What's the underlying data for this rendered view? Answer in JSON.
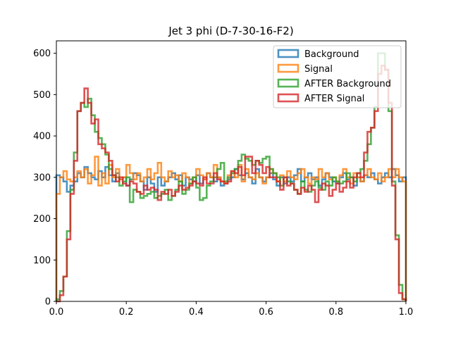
{
  "chart_data": {
    "type": "histogram-step",
    "title": "Jet 3 phi (D-7-30-16-F2)",
    "xlabel": "",
    "ylabel": "",
    "xlim": [
      0,
      1
    ],
    "ylim": [
      0,
      630
    ],
    "x_ticks": [
      0.0,
      0.2,
      0.4,
      0.6,
      0.8,
      1.0
    ],
    "x_tick_labels": [
      "0.0",
      "0.2",
      "0.4",
      "0.6",
      "0.8",
      "1.0"
    ],
    "y_ticks": [
      0,
      100,
      200,
      300,
      400,
      500,
      600
    ],
    "y_tick_labels": [
      "0",
      "100",
      "200",
      "300",
      "400",
      "500",
      "600"
    ],
    "bins": 100,
    "bin_range": [
      0,
      1
    ],
    "grid": false,
    "legend_position": "top-right",
    "series": [
      {
        "name": "Background",
        "color": "#1f77b4",
        "values": [
          305,
          300,
          290,
          265,
          280,
          290,
          310,
          300,
          325,
          310,
          300,
          295,
          315,
          300,
          325,
          305,
          290,
          310,
          295,
          300,
          280,
          295,
          310,
          305,
          290,
          270,
          300,
          285,
          265,
          300,
          280,
          290,
          300,
          310,
          295,
          305,
          280,
          300,
          295,
          290,
          305,
          285,
          295,
          310,
          300,
          290,
          300,
          280,
          285,
          295,
          300,
          320,
          305,
          295,
          310,
          300,
          285,
          320,
          300,
          290,
          300,
          310,
          295,
          280,
          300,
          285,
          300,
          290,
          305,
          320,
          290,
          300,
          310,
          295,
          300,
          280,
          295,
          310,
          300,
          290,
          285,
          300,
          310,
          295,
          300,
          280,
          300,
          290,
          305,
          300,
          310,
          295,
          285,
          300,
          310,
          300,
          320,
          305,
          290,
          300
        ]
      },
      {
        "name": "Signal",
        "color": "#ff7f0e",
        "values": [
          260,
          300,
          315,
          295,
          290,
          300,
          315,
          300,
          320,
          285,
          305,
          350,
          280,
          310,
          285,
          330,
          300,
          320,
          295,
          300,
          330,
          310,
          295,
          310,
          290,
          300,
          320,
          295,
          310,
          335,
          300,
          290,
          315,
          300,
          305,
          290,
          310,
          300,
          285,
          300,
          320,
          305,
          295,
          310,
          300,
          330,
          300,
          290,
          285,
          305,
          315,
          300,
          330,
          290,
          320,
          300,
          295,
          310,
          300,
          285,
          300,
          320,
          310,
          290,
          305,
          290,
          315,
          300,
          295,
          310,
          320,
          300,
          285,
          300,
          295,
          320,
          300,
          310,
          295,
          300,
          290,
          305,
          320,
          300,
          285,
          310,
          300,
          290,
          305,
          320,
          300,
          295,
          310,
          290,
          300,
          320,
          300,
          320,
          300,
          290
        ]
      },
      {
        "name": "AFTER Background",
        "color": "#2ca02c",
        "values": [
          5,
          25,
          60,
          170,
          270,
          360,
          460,
          480,
          470,
          490,
          450,
          410,
          395,
          380,
          355,
          320,
          305,
          300,
          280,
          290,
          300,
          240,
          270,
          265,
          250,
          255,
          260,
          265,
          250,
          255,
          260,
          270,
          245,
          255,
          270,
          290,
          260,
          270,
          285,
          300,
          275,
          245,
          250,
          280,
          290,
          300,
          320,
          335,
          290,
          300,
          310,
          320,
          340,
          355,
          345,
          340,
          330,
          340,
          335,
          345,
          350,
          320,
          310,
          300,
          280,
          300,
          290,
          285,
          270,
          260,
          290,
          270,
          265,
          280,
          290,
          275,
          270,
          290,
          280,
          300,
          290,
          285,
          290,
          310,
          300,
          290,
          310,
          320,
          340,
          380,
          420,
          470,
          600,
          600,
          560,
          460,
          290,
          160,
          40,
          5
        ]
      },
      {
        "name": "AFTER Signal",
        "color": "#d62728",
        "values": [
          0,
          15,
          60,
          150,
          260,
          340,
          460,
          480,
          515,
          480,
          430,
          440,
          380,
          370,
          360,
          340,
          305,
          290,
          300,
          285,
          280,
          290,
          285,
          265,
          260,
          280,
          270,
          275,
          270,
          245,
          265,
          260,
          270,
          255,
          265,
          280,
          270,
          275,
          280,
          290,
          285,
          280,
          300,
          285,
          285,
          310,
          295,
          290,
          285,
          290,
          315,
          310,
          325,
          305,
          350,
          350,
          310,
          340,
          330,
          310,
          325,
          300,
          300,
          290,
          270,
          300,
          280,
          285,
          270,
          260,
          275,
          265,
          280,
          270,
          240,
          270,
          285,
          280,
          255,
          270,
          285,
          265,
          275,
          290,
          275,
          300,
          310,
          300,
          360,
          410,
          420,
          460,
          550,
          570,
          560,
          480,
          280,
          150,
          20,
          5
        ]
      }
    ]
  }
}
